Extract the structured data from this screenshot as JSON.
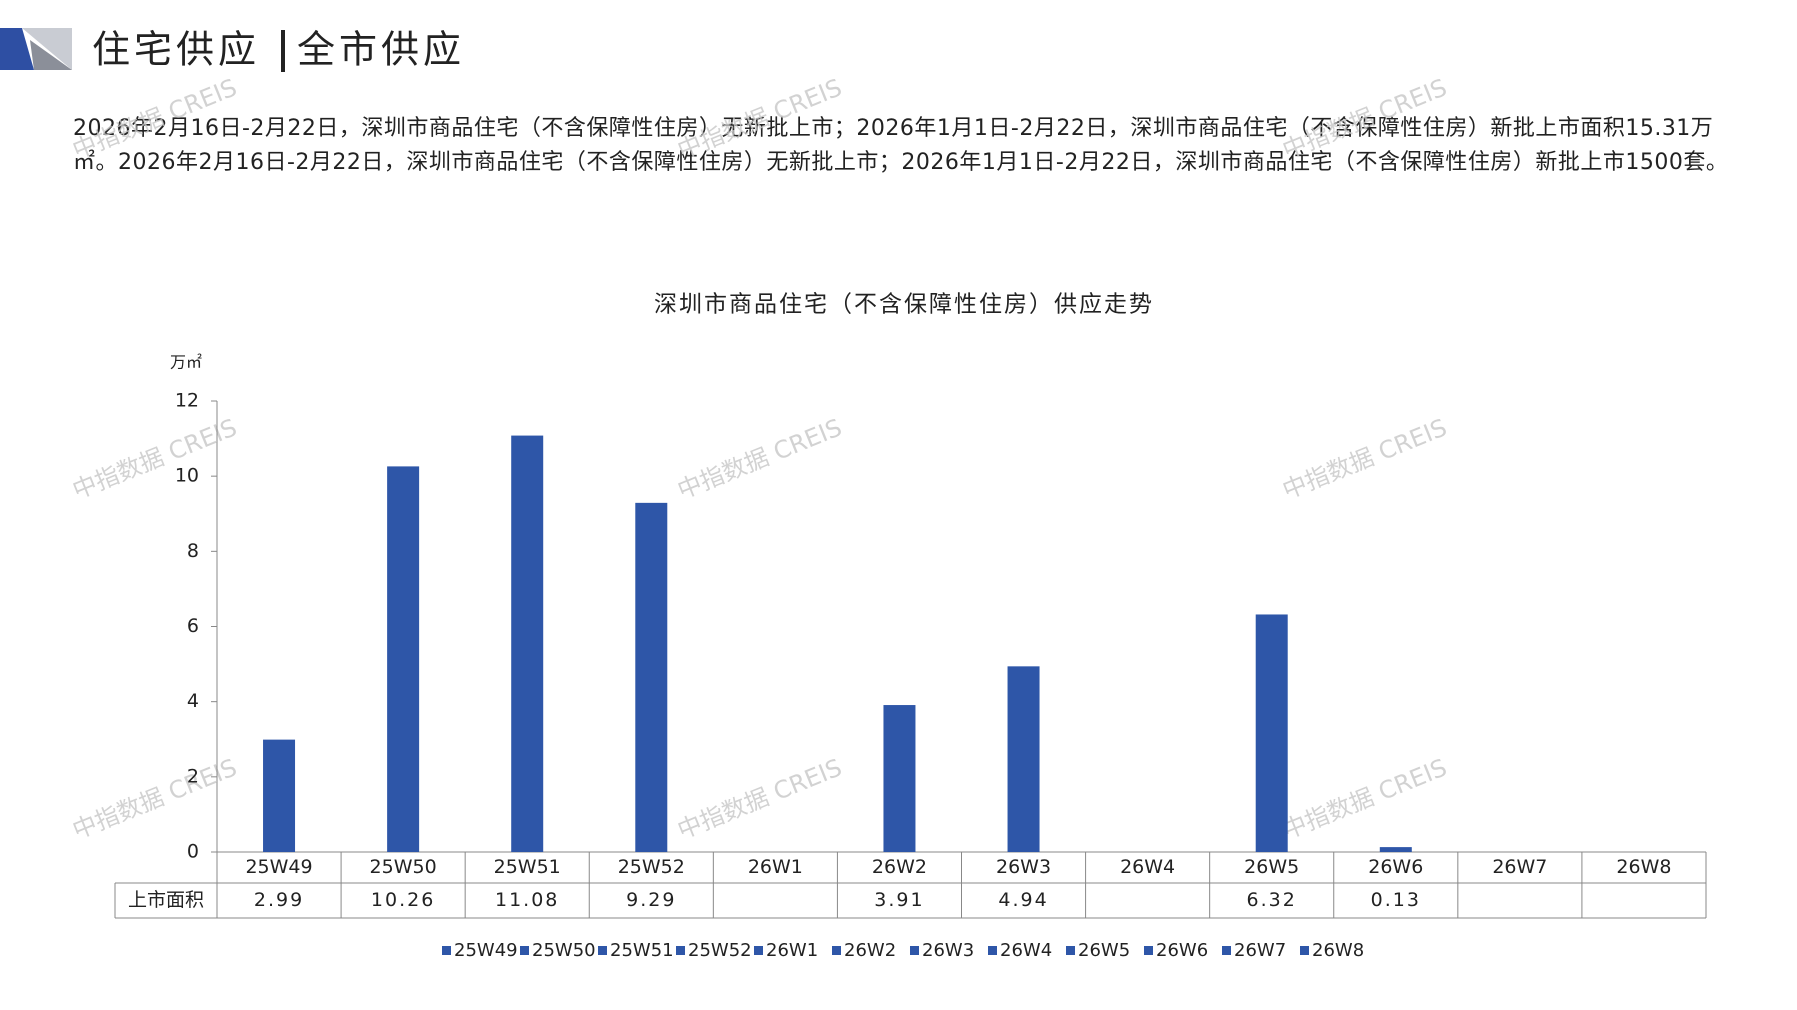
{
  "header": {
    "title_left": "住宅供应",
    "title_right": "全市供应"
  },
  "paragraph": "2026年2月16日-2月22日，深圳市商品住宅（不含保障性住房）无新批上市；2026年1月1日-2月22日，深圳市商品住宅（不含保障性住房）新批上市面积15.31万㎡。2026年2月16日-2月22日，深圳市商品住宅（不含保障性住房）无新批上市；2026年1月1日-2月22日，深圳市商品住宅（不含保障性住房）新批上市1500套。",
  "watermark": "中指数据 CREIS",
  "chart_data": {
    "type": "bar",
    "title": "深圳市商品住宅（不含保障性住房）供应走势",
    "y_label": "万㎡",
    "categories": [
      "25W49",
      "25W50",
      "25W51",
      "25W52",
      "26W1",
      "26W2",
      "26W3",
      "26W4",
      "26W5",
      "26W6",
      "26W7",
      "26W8"
    ],
    "series": [
      {
        "name": "上市面积",
        "color": "#2e56a8",
        "values": [
          2.99,
          10.26,
          11.08,
          9.29,
          null,
          3.91,
          4.94,
          null,
          6.32,
          0.13,
          null,
          null
        ]
      }
    ],
    "ylim": [
      0,
      12
    ],
    "yticks": [
      0,
      2,
      4,
      6,
      8,
      10,
      12
    ],
    "grid": false,
    "data_table": true
  }
}
